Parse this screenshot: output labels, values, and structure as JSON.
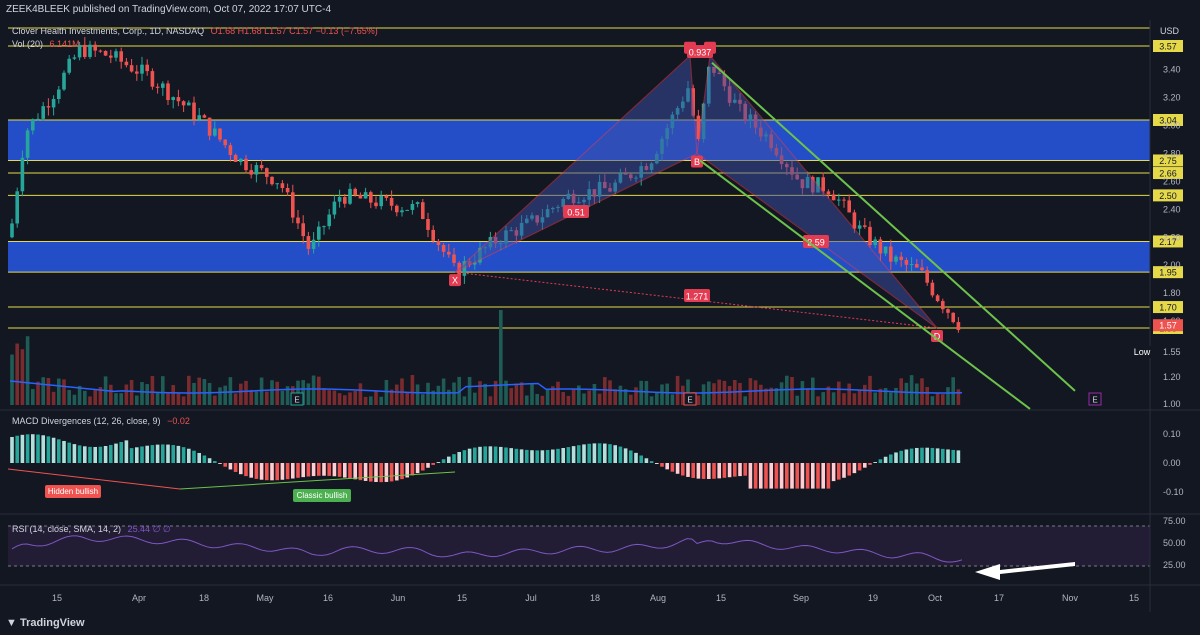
{
  "header": {
    "publisher": "ZEEK4BLEEK published on TradingView.com, Oct 07, 2022 17:07 UTC-4"
  },
  "legend": {
    "symbol": "Clover Health Investments, Corp., 1D, NASDAQ",
    "ohlc": "O1.68 H1.68 L1.57 C1.57 −0.13 (−7.65%)",
    "vol": "Vol (20)",
    "vol_value": "6.141M",
    "macd": "MACD Divergences (12, 26, close, 9)",
    "macd_value": "−0.02",
    "rsi": "RSI (14, close, SMA, 14, 2)",
    "rsi_value": "25.44  ∅  ∅"
  },
  "footer": {
    "brand": "TradingView"
  },
  "colors": {
    "bg": "#131722",
    "up": "#26a69a",
    "down": "#ef5350",
    "zone": "#2962ff",
    "level": "#e5d94a",
    "pattern": "#e33b52",
    "channel": "#6cc24a",
    "vol_ma": "#2962ff",
    "rsi": "#7e57c2"
  },
  "chart_data": {
    "type": "candlestick",
    "currency": "USD",
    "price_axis_ticks": [
      3.4,
      3.2,
      3.0,
      2.8,
      2.6,
      2.4,
      2.2,
      2.0,
      1.8,
      1.2,
      1.0
    ],
    "price_axis_labels": [
      "USD",
      "3.57",
      "3.40",
      "3.20",
      "3.04",
      "3.00",
      "2.80",
      "2.75",
      "2.66",
      "2.60",
      "2.50",
      "2.40",
      "2.20",
      "2.17",
      "2.00",
      "1.95",
      "1.80",
      "1.70",
      "1.60",
      "1.57",
      "1.55",
      "Low",
      "1.55",
      "1.20",
      "1.00"
    ],
    "x_ticks": [
      "15",
      "Apr",
      "18",
      "May",
      "16",
      "Jun",
      "15",
      "Jul",
      "18",
      "Aug",
      "15",
      "Sep",
      "19",
      "Oct",
      "17",
      "Nov",
      "15"
    ],
    "levels": [
      3.57,
      3.04,
      2.75,
      2.66,
      2.5,
      2.17,
      1.95,
      1.7,
      1.55
    ],
    "badges": {
      "last": "1.57",
      "low_label": "Low",
      "low_value": "1.55"
    },
    "zones": [
      {
        "from": 2.75,
        "to": 3.04
      },
      {
        "from": 1.95,
        "to": 2.17
      }
    ],
    "harmonic_labels": {
      "X": "X",
      "A": "A",
      "B": "B",
      "C": "C",
      "D": "D",
      "ratios": [
        "0.51",
        "0.937",
        "2.59",
        "1.271"
      ]
    },
    "markers": [
      "E",
      "E",
      "E"
    ],
    "macd_axis": [
      "0.10",
      "0.00",
      "-0.10"
    ],
    "macd_labels": [
      "Hidden bullish",
      "Classic bullish"
    ],
    "rsi_axis": [
      "75.00",
      "50.00",
      "25.00"
    ],
    "ohlc_last": {
      "open": 1.68,
      "high": 1.68,
      "low": 1.57,
      "close": 1.57,
      "change": -0.13,
      "change_pct": -7.65
    }
  }
}
